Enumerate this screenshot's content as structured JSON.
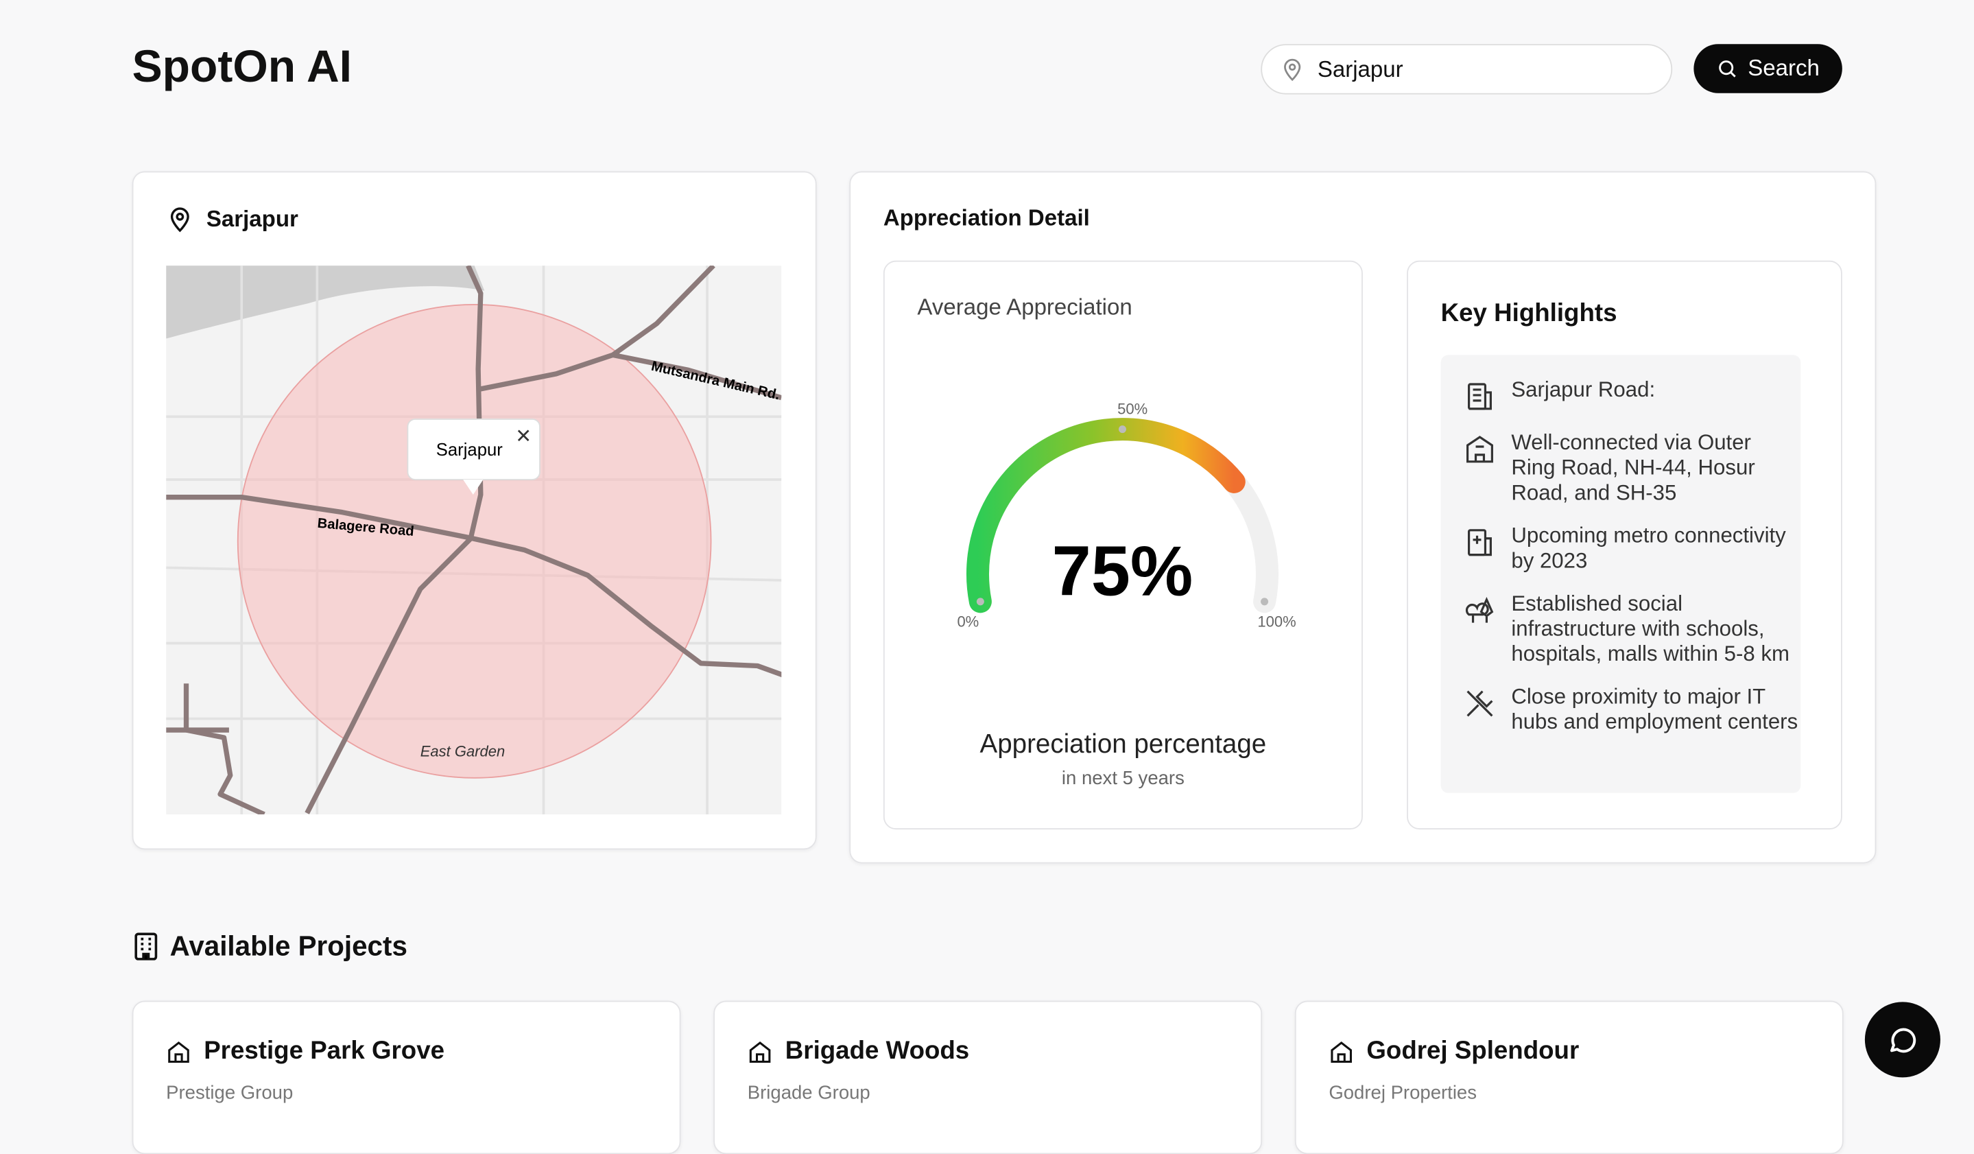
{
  "header": {
    "title": "SpotOn AI",
    "search_value": "Sarjapur",
    "search_button": "Search"
  },
  "map": {
    "title": "Sarjapur",
    "popup": "Sarjapur",
    "labels": [
      "Mutsandra Main Rd.",
      "Balagere Road",
      "East Garden"
    ]
  },
  "appreciation": {
    "title": "Appreciation Detail",
    "gauge": {
      "heading": "Average Appreciation",
      "value": 75,
      "value_label": "75%",
      "ticks": [
        {
          "value": 0,
          "label": "0%"
        },
        {
          "value": 50,
          "label": "50%"
        },
        {
          "value": 100,
          "label": "100%"
        }
      ],
      "caption": "Appreciation percentage",
      "subcaption": "in next 5 years"
    },
    "highlights": {
      "title": "Key Highlights",
      "items": [
        "Sarjapur Road:",
        "Well-connected via Outer Ring Road, NH-44, Hosur Road, and SH-35",
        "Upcoming metro connectivity by 2023",
        "Established social infrastructure with schools, hospitals, malls within 5-8 km",
        "Close proximity to major IT hubs and employment centers"
      ]
    }
  },
  "projects": {
    "title": "Available Projects",
    "items": [
      {
        "name": "Prestige Park Grove",
        "developer": "Prestige Group"
      },
      {
        "name": "Brigade Woods",
        "developer": "Brigade Group"
      },
      {
        "name": "Godrej Splendour",
        "developer": "Godrej Properties"
      }
    ]
  }
}
